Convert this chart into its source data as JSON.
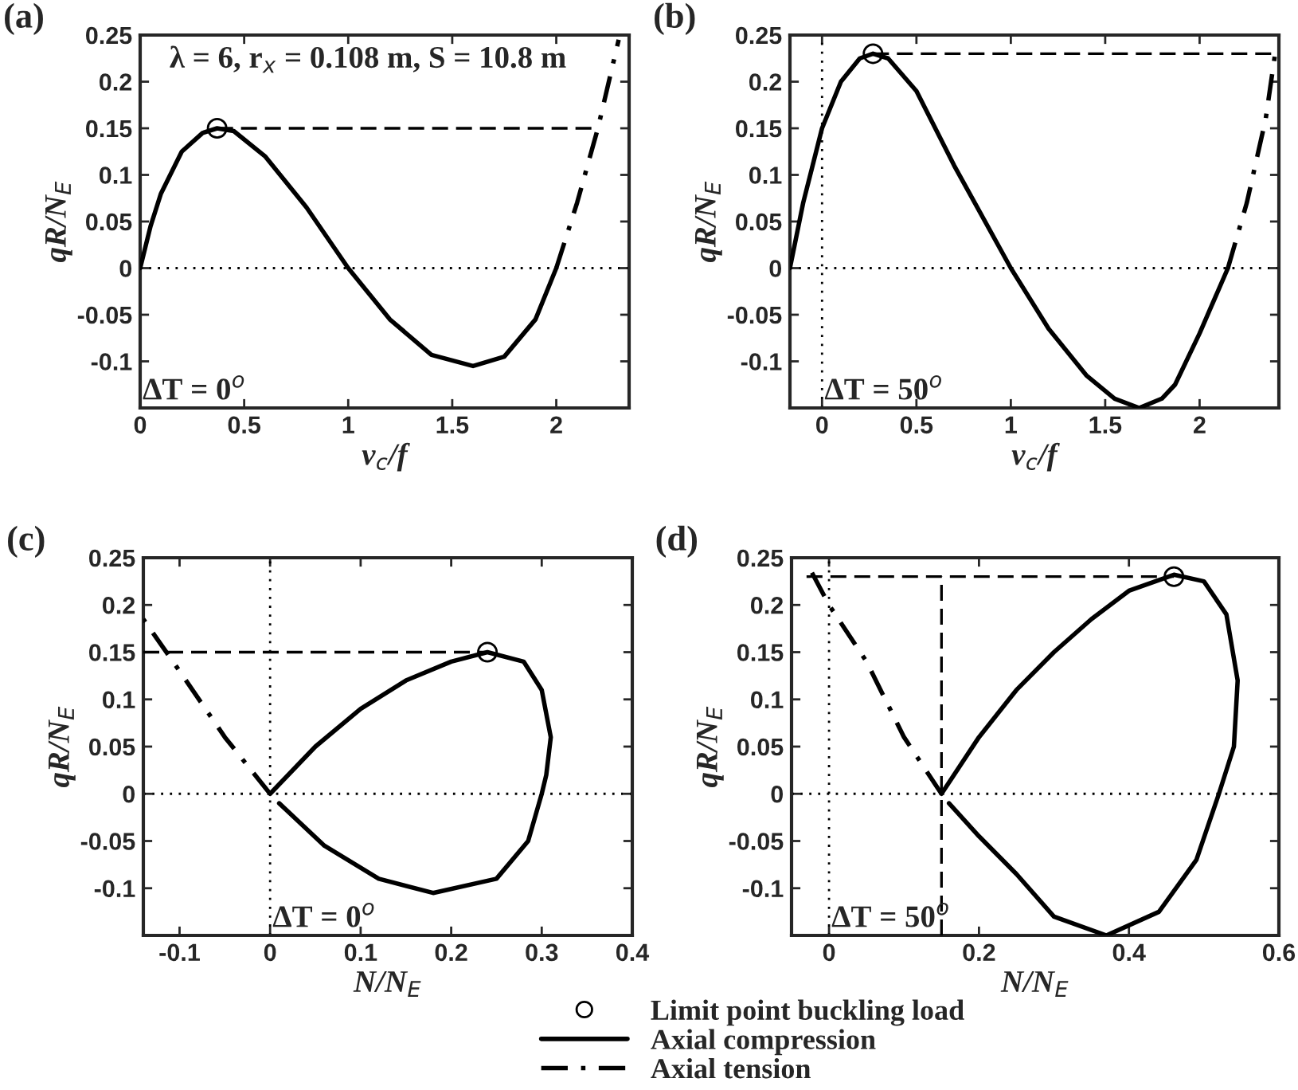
{
  "chart_data": [
    {
      "type": "line",
      "xlabel": "v$_{c}$/f",
      "ylabel": "qR/N$_{E}$",
      "xlim": [
        0,
        2.35
      ],
      "ylim": [
        -0.15,
        0.25
      ],
      "xticks": [
        0,
        0.5,
        1,
        1.5,
        2
      ],
      "yticks": [
        -0.1,
        -0.05,
        0,
        0.05,
        0.1,
        0.15,
        0.2,
        0.25
      ],
      "grid": false,
      "legend": false,
      "annotations": [
        "(a)",
        "λ = 6, r$_{x}$ = 0.108 m, S = 10.8 m",
        "ΔT = 0$^{o}$"
      ],
      "ref_lines": [
        {
          "axis": "y",
          "value": 0,
          "label": null,
          "color": "#000000",
          "line_style": "dotted"
        }
      ],
      "series": [
        {
          "type": "line",
          "color": "#000000",
          "line_style": "solid",
          "x": [
            0,
            0.05,
            0.1,
            0.2,
            0.3,
            0.37,
            0.45,
            0.6,
            0.8,
            1.0,
            1.2,
            1.4,
            1.6,
            1.75,
            1.9,
            2.0
          ],
          "values": [
            0,
            0.045,
            0.08,
            0.125,
            0.145,
            0.15,
            0.147,
            0.12,
            0.065,
            0.0,
            -0.055,
            -0.093,
            -0.105,
            -0.095,
            -0.055,
            0
          ]
        },
        {
          "type": "line",
          "color": "#000000",
          "line_style": "dashdot",
          "x": [
            2.0,
            2.1,
            2.2,
            2.3
          ],
          "values": [
            0,
            0.07,
            0.15,
            0.245
          ]
        },
        {
          "type": "line",
          "color": "#000000",
          "line_style": "dashed",
          "x": [
            0.37,
            2.2
          ],
          "values": [
            0.15,
            0.15
          ]
        },
        {
          "type": "scatter",
          "color": "#000000",
          "marker": "circle",
          "x": [
            0.37
          ],
          "values": [
            0.15
          ]
        }
      ]
    },
    {
      "type": "line",
      "xlabel": "v$_{c}$/f",
      "ylabel": "qR/N$_{E}$",
      "xlim": [
        -0.17,
        2.42
      ],
      "ylim": [
        -0.15,
        0.25
      ],
      "xticks": [
        0,
        0.5,
        1,
        1.5,
        2
      ],
      "yticks": [
        -0.1,
        -0.05,
        0,
        0.05,
        0.1,
        0.15,
        0.2,
        0.25
      ],
      "grid": false,
      "legend": false,
      "annotations": [
        "(b)",
        "ΔT = 50$^{o}$"
      ],
      "ref_lines": [
        {
          "axis": "y",
          "value": 0,
          "label": null,
          "color": "#000000",
          "line_style": "dotted"
        },
        {
          "axis": "x",
          "value": 0,
          "label": null,
          "color": "#000000",
          "line_style": "dotted"
        }
      ],
      "series": [
        {
          "type": "line",
          "color": "#000000",
          "line_style": "solid",
          "x": [
            -0.17,
            -0.1,
            0,
            0.1,
            0.2,
            0.27,
            0.35,
            0.5,
            0.7,
            1.0,
            1.2,
            1.4,
            1.55,
            1.68,
            1.8,
            1.87,
            2.0,
            2.15
          ],
          "values": [
            0,
            0.07,
            0.15,
            0.2,
            0.225,
            0.23,
            0.225,
            0.19,
            0.11,
            0.0,
            -0.065,
            -0.115,
            -0.14,
            -0.15,
            -0.14,
            -0.125,
            -0.07,
            0
          ]
        },
        {
          "type": "line",
          "color": "#000000",
          "line_style": "dashdot",
          "x": [
            2.15,
            2.25,
            2.35,
            2.4
          ],
          "values": [
            0,
            0.07,
            0.16,
            0.23
          ]
        },
        {
          "type": "line",
          "color": "#000000",
          "line_style": "dashed",
          "x": [
            0.27,
            2.4
          ],
          "values": [
            0.23,
            0.23
          ]
        },
        {
          "type": "scatter",
          "color": "#000000",
          "marker": "circle",
          "x": [
            0.27
          ],
          "values": [
            0.23
          ]
        }
      ]
    },
    {
      "type": "line",
      "xlabel": "N/N$_{E}$",
      "ylabel": "qR/N$_{E}$",
      "xlim": [
        -0.14,
        0.4
      ],
      "ylim": [
        -0.15,
        0.25
      ],
      "xticks": [
        -0.1,
        0,
        0.1,
        0.2,
        0.3,
        0.4
      ],
      "yticks": [
        -0.1,
        -0.05,
        0,
        0.05,
        0.1,
        0.15,
        0.2,
        0.25
      ],
      "grid": false,
      "legend": "bottom",
      "annotations": [
        "(c)",
        "ΔT = 0$^{o}$"
      ],
      "ref_lines": [
        {
          "axis": "y",
          "value": 0,
          "label": null,
          "color": "#000000",
          "line_style": "dotted"
        },
        {
          "axis": "x",
          "value": 0,
          "label": null,
          "color": "#000000",
          "line_style": "dotted"
        }
      ],
      "series": [
        {
          "type": "scatter",
          "name": "Limit point buckling load",
          "color": "#000000",
          "marker": "circle",
          "x": [
            0.24
          ],
          "values": [
            0.15
          ]
        },
        {
          "type": "line",
          "name": "Axial compression",
          "color": "#000000",
          "line_style": "solid",
          "x": [
            0,
            0.05,
            0.1,
            0.15,
            0.2,
            0.24,
            0.28,
            0.3,
            0.31,
            0.305,
            0.3,
            0.285,
            0.25,
            0.18,
            0.12,
            0.06,
            0.01
          ],
          "values": [
            0,
            0.05,
            0.09,
            0.12,
            0.14,
            0.15,
            0.14,
            0.11,
            0.06,
            0.02,
            0,
            -0.05,
            -0.09,
            -0.105,
            -0.09,
            -0.055,
            -0.01
          ]
        },
        {
          "type": "line",
          "name": "Axial tension",
          "color": "#000000",
          "line_style": "dashdot",
          "x": [
            0,
            -0.05,
            -0.1,
            -0.14
          ],
          "values": [
            0,
            0.06,
            0.13,
            0.185
          ]
        },
        {
          "type": "line",
          "color": "#000000",
          "line_style": "dashed",
          "x": [
            -0.14,
            0.24
          ],
          "values": [
            0.15,
            0.15
          ]
        }
      ]
    },
    {
      "type": "line",
      "xlabel": "N/N$_{E}$",
      "ylabel": "qR/N$_{E}$",
      "xlim": [
        -0.05,
        0.6
      ],
      "ylim": [
        -0.15,
        0.25
      ],
      "xticks": [
        0,
        0.2,
        0.4,
        0.6
      ],
      "yticks": [
        -0.1,
        -0.05,
        0,
        0.05,
        0.1,
        0.15,
        0.2,
        0.25
      ],
      "grid": false,
      "legend": false,
      "annotations": [
        "(d)",
        "ΔT = 50$^{o}$"
      ],
      "ref_lines": [
        {
          "axis": "y",
          "value": 0,
          "label": null,
          "color": "#000000",
          "line_style": "dotted"
        },
        {
          "axis": "x",
          "value": 0,
          "label": null,
          "color": "#000000",
          "line_style": "dotted"
        }
      ],
      "series": [
        {
          "type": "line",
          "color": "#000000",
          "line_style": "solid",
          "x": [
            0.15,
            0.2,
            0.25,
            0.3,
            0.35,
            0.4,
            0.46,
            0.5,
            0.53,
            0.545,
            0.54,
            0.52,
            0.49,
            0.44,
            0.37,
            0.3,
            0.25,
            0.2,
            0.16
          ],
          "values": [
            0,
            0.06,
            0.11,
            0.15,
            0.185,
            0.215,
            0.232,
            0.225,
            0.19,
            0.12,
            0.05,
            0,
            -0.07,
            -0.125,
            -0.15,
            -0.13,
            -0.085,
            -0.045,
            -0.01
          ]
        },
        {
          "type": "line",
          "color": "#000000",
          "line_style": "dashdot",
          "x": [
            0.15,
            0.1,
            0.05,
            0,
            -0.03
          ],
          "values": [
            0,
            0.06,
            0.14,
            0.2,
            0.245
          ]
        },
        {
          "type": "line",
          "color": "#000000",
          "line_style": "dashed",
          "x": [
            -0.03,
            0.46
          ],
          "values": [
            0.23,
            0.23
          ]
        },
        {
          "type": "line",
          "color": "#000000",
          "line_style": "dashed",
          "x": [
            0.15,
            0.15
          ],
          "values": [
            -0.15,
            0.23
          ]
        },
        {
          "type": "scatter",
          "color": "#000000",
          "marker": "circle",
          "x": [
            0.46
          ],
          "values": [
            0.23
          ]
        }
      ]
    }
  ]
}
